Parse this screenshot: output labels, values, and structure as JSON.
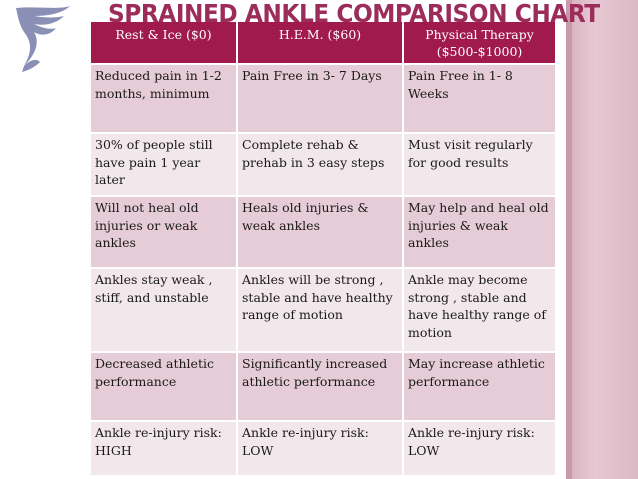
{
  "title": "SPRAINED ANKLE COMPARISON CHART",
  "logo": {
    "icon": "winged-foot-logo",
    "color": "#8a8fb5"
  },
  "colors": {
    "title": "#9c2d5a",
    "header": "#a01a4e",
    "row_dark": "#e6ccd6",
    "row_light": "#f2e7eb",
    "side_bar": "#dcb8c4"
  },
  "table": {
    "headers": [
      "Rest & Ice ($0)",
      "H.E.M. ($60)",
      "Physical Therapy ($500-$1000)"
    ],
    "rows": [
      [
        "Reduced pain in  1-2 months, minimum",
        "Pain Free in 3- 7 Days",
        "Pain Free in 1- 8 Weeks"
      ],
      [
        "30% of people still have pain 1 year later",
        "Complete rehab & prehab in 3 easy steps",
        "Must visit regularly for good results"
      ],
      [
        "Will not heal old injuries or weak ankles",
        "Heals old injuries & weak ankles",
        "May help and heal old injuries & weak ankles"
      ],
      [
        "Ankles stay weak , stiff, and unstable",
        "Ankles will be strong , stable and have healthy range of motion",
        "Ankle may become strong , stable and have healthy range of motion"
      ],
      [
        " Decreased athletic performance",
        " Significantly increased athletic performance",
        "May increase athletic performance"
      ],
      [
        "Ankle re-injury risk: HIGH",
        "Ankle re-injury risk: LOW",
        "Ankle re-injury risk: LOW"
      ]
    ]
  }
}
